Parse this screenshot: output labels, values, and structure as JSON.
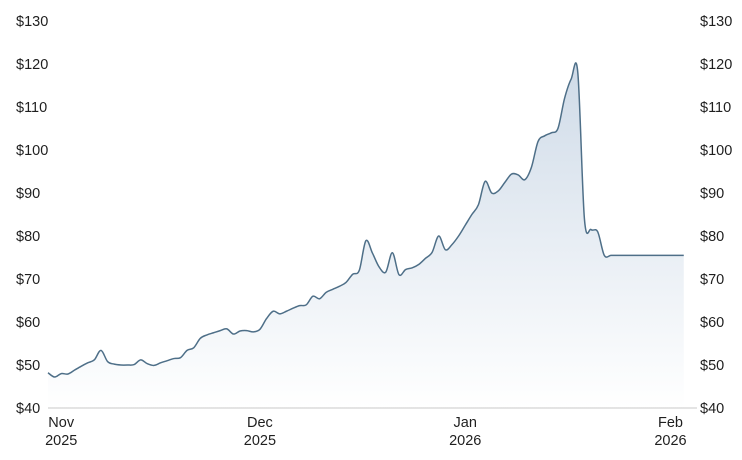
{
  "chart_data": {
    "type": "area",
    "title": "",
    "xlabel": "",
    "ylabel": "",
    "ylim": [
      40,
      130
    ],
    "xlim": [
      "2025-10-30",
      "2026-02-05"
    ],
    "grid": false,
    "legend": "none",
    "y_axis_sides": "left and right",
    "y_ticks": [
      130,
      120,
      110,
      100,
      90,
      80,
      70,
      60,
      50,
      40
    ],
    "y_tick_labels": [
      "$130",
      "$120",
      "$110",
      "$100",
      "$90",
      "$80",
      "$70",
      "$60",
      "$50",
      "$40"
    ],
    "x_ticks": [
      {
        "date": "2025-11-01",
        "label_top": "Nov",
        "label_bottom": "2025"
      },
      {
        "date": "2025-12-01",
        "label_top": "Dec",
        "label_bottom": "2025"
      },
      {
        "date": "2026-01-01",
        "label_top": "Jan",
        "label_bottom": "2026"
      },
      {
        "date": "2026-02-01",
        "label_top": "Feb",
        "label_bottom": "2026"
      }
    ],
    "series": [
      {
        "x": [
          "2025-10-30",
          "2025-10-31",
          "2025-11-01",
          "2025-11-02",
          "2025-11-03",
          "2025-11-04",
          "2025-11-05",
          "2025-11-06",
          "2025-11-07",
          "2025-11-08",
          "2025-11-09",
          "2025-11-10",
          "2025-11-11",
          "2025-11-12",
          "2025-11-13",
          "2025-11-14",
          "2025-11-15",
          "2025-11-16",
          "2025-11-17",
          "2025-11-18",
          "2025-11-19",
          "2025-11-20",
          "2025-11-21",
          "2025-11-22",
          "2025-11-23",
          "2025-11-24",
          "2025-11-25",
          "2025-11-26",
          "2025-11-27",
          "2025-11-28",
          "2025-11-29",
          "2025-11-30",
          "2025-12-01",
          "2025-12-02",
          "2025-12-03",
          "2025-12-04",
          "2025-12-05",
          "2025-12-06",
          "2025-12-07",
          "2025-12-08",
          "2025-12-09",
          "2025-12-10",
          "2025-12-11",
          "2025-12-12",
          "2025-12-13",
          "2025-12-14",
          "2025-12-15",
          "2025-12-16",
          "2025-12-17",
          "2025-12-18",
          "2025-12-19",
          "2025-12-20",
          "2025-12-21",
          "2025-12-22",
          "2025-12-23",
          "2025-12-24",
          "2025-12-25",
          "2025-12-26",
          "2025-12-27",
          "2025-12-28",
          "2025-12-29",
          "2025-12-30",
          "2025-12-31",
          "2026-01-01",
          "2026-01-02",
          "2026-01-03",
          "2026-01-04",
          "2026-01-05",
          "2026-01-06",
          "2026-01-07",
          "2026-01-08",
          "2026-01-09",
          "2026-01-10",
          "2026-01-11",
          "2026-01-12",
          "2026-01-13",
          "2026-01-14",
          "2026-01-15",
          "2026-01-16",
          "2026-01-17",
          "2026-01-18",
          "2026-01-19",
          "2026-01-20",
          "2026-01-21",
          "2026-01-22",
          "2026-01-23",
          "2026-01-24",
          "2026-01-25",
          "2026-01-26",
          "2026-01-27",
          "2026-01-28",
          "2026-01-29",
          "2026-01-30",
          "2026-01-31",
          "2026-02-01",
          "2026-02-02",
          "2026-02-03"
        ],
        "values": [
          48.2,
          47.2,
          48.0,
          47.9,
          48.8,
          49.7,
          50.5,
          51.2,
          53.4,
          50.8,
          50.2,
          50.0,
          50.0,
          50.1,
          51.2,
          50.3,
          49.9,
          50.5,
          51.0,
          51.5,
          51.7,
          53.4,
          54.0,
          56.2,
          57.0,
          57.5,
          58.0,
          58.4,
          57.2,
          57.9,
          58.0,
          57.7,
          58.3,
          60.8,
          62.5,
          61.9,
          62.5,
          63.2,
          63.8,
          64.0,
          66.0,
          65.4,
          66.9,
          67.6,
          68.3,
          69.2,
          71.1,
          72.0,
          78.9,
          76.0,
          72.8,
          71.6,
          76.1,
          71.0,
          72.2,
          72.6,
          73.4,
          74.8,
          76.2,
          80.0,
          76.8,
          78.0,
          80.0,
          82.5,
          85.0,
          87.3,
          92.7,
          90.0,
          90.5,
          92.5,
          94.4,
          94.2,
          93.1,
          96.0,
          102.0,
          103.3,
          104.0,
          105.0,
          112.0,
          116.5,
          118.0,
          84.0,
          81.5,
          81.0,
          75.5,
          75.5,
          75.5,
          75.5,
          75.5,
          75.5,
          75.5,
          75.5,
          75.5,
          75.5,
          75.5,
          75.5,
          75.5
        ]
      }
    ],
    "colors": {
      "line": "#4e6f88",
      "fill_top": "#cfdbe8",
      "fill_bottom": "#ffffff",
      "axis": "#c8c8c8"
    }
  }
}
